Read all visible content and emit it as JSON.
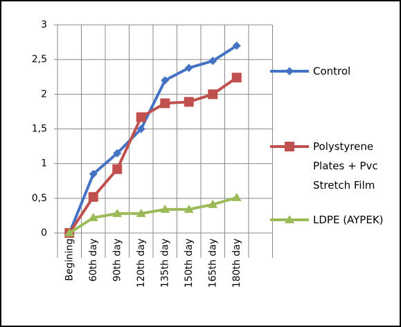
{
  "chart_data": {
    "type": "line",
    "categories": [
      "Begining",
      "60th day",
      "90th day",
      "120th day",
      "135th day",
      "150th day",
      "165th day",
      "180th day"
    ],
    "series": [
      {
        "name": "Control",
        "color": "#4472c4",
        "marker": "diamond",
        "values": [
          0,
          0.85,
          1.15,
          1.5,
          2.2,
          2.38,
          2.48,
          2.7
        ]
      },
      {
        "name": "Polystyrene Plates + Pvc Stretch Film",
        "color": "#c0504d",
        "marker": "square",
        "values": [
          0,
          0.52,
          0.92,
          1.67,
          1.87,
          1.89,
          2.0,
          2.24
        ]
      },
      {
        "name": "LDPE (AYPEK)",
        "color": "#9bbb59",
        "marker": "triangle",
        "values": [
          0,
          0.22,
          0.28,
          0.28,
          0.34,
          0.34,
          0.41,
          0.51
        ]
      }
    ],
    "ylim": [
      0,
      3
    ],
    "yticks": [
      0,
      {
        "value": 0.5,
        "label": "0,5"
      },
      1,
      {
        "value": 1.5,
        "label": "1,5"
      },
      2,
      {
        "value": 2.5,
        "label": "2,5"
      },
      3
    ],
    "grid": true
  }
}
